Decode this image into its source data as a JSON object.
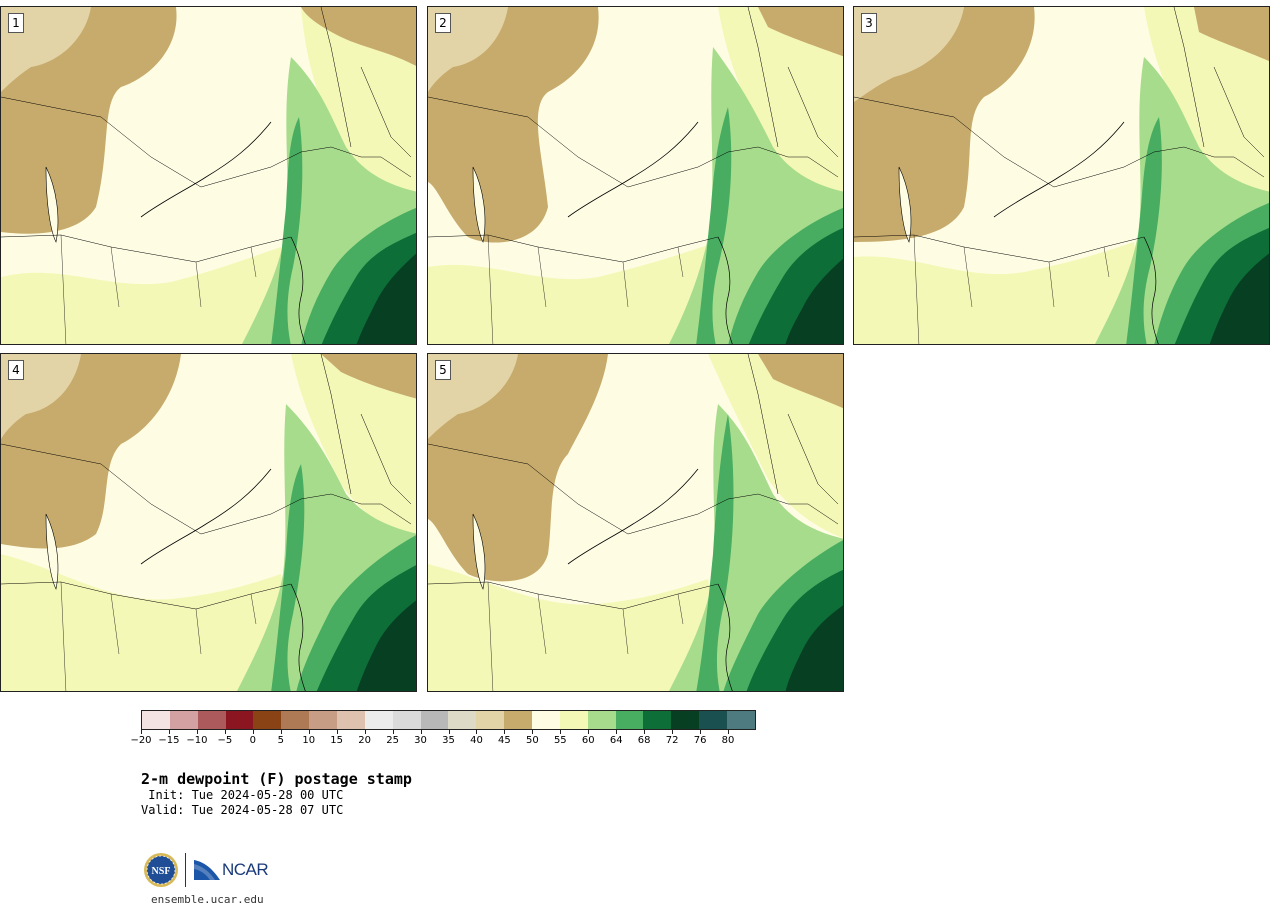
{
  "panels": [
    {
      "number": "1"
    },
    {
      "number": "2"
    },
    {
      "number": "3"
    },
    {
      "number": "4"
    },
    {
      "number": "5"
    }
  ],
  "colorbar": {
    "colors": [
      "#f3e4e3",
      "#d4a1a2",
      "#ad5a5d",
      "#8b1520",
      "#8a4315",
      "#ad7a55",
      "#c79e85",
      "#dfc1b0",
      "#ebebeb",
      "#dadada",
      "#b8b8b8",
      "#dddbc7",
      "#e3d4a8",
      "#c7ab6c",
      "#fefde4",
      "#f4f8b7",
      "#a8dc8d",
      "#48ad60",
      "#0d6e38",
      "#063f22",
      "#1a5050",
      "#4e7b7f"
    ],
    "tick_labels": [
      "−20",
      "−15",
      "−10",
      "−5",
      "0",
      "5",
      "10",
      "15",
      "20",
      "25",
      "30",
      "35",
      "40",
      "45",
      "50",
      "55",
      "60",
      "64",
      "68",
      "72",
      "76",
      "80"
    ]
  },
  "title": {
    "main": "2-m dewpoint (F) postage stamp",
    "init": " Init: Tue 2024-05-28 00 UTC",
    "valid": "Valid: Tue 2024-05-28 07 UTC"
  },
  "logos": {
    "nsf_text": "NSF",
    "ncar_text": "NCAR"
  },
  "footer": {
    "url": "ensemble.ucar.edu"
  }
}
